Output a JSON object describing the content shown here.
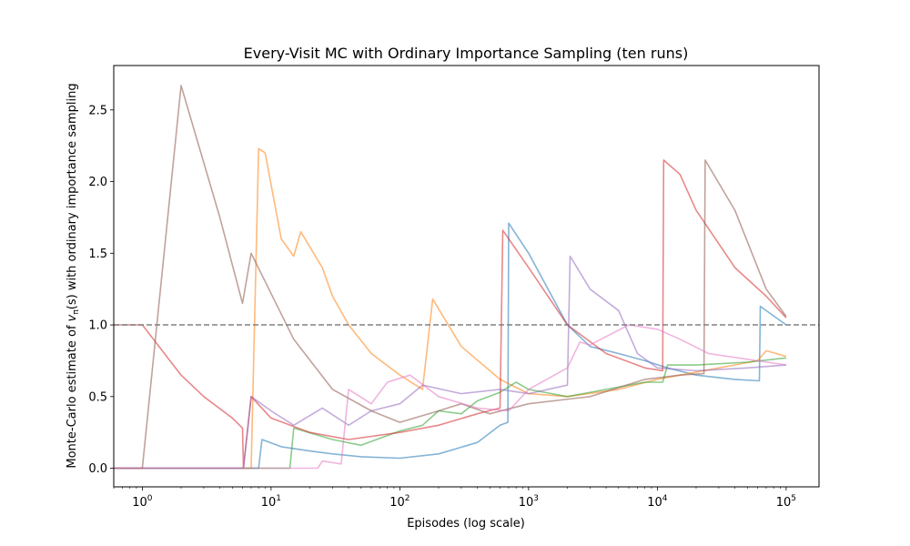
{
  "chart_data": {
    "type": "line",
    "title": "Every-Visit MC with Ordinary Importance Sampling (ten runs)",
    "xlabel": "Episodes (log scale)",
    "ylabel": "Monte-Carlo estimate of v_π(s) with ordinary importance sampling",
    "ylabel_prefix": "Monte-Carlo estimate of ",
    "ylabel_var": "v",
    "ylabel_sub": "π",
    "ylabel_suffix": "(s) with ordinary importance sampling",
    "x_scale": "log",
    "xlim": [
      0.6,
      180000
    ],
    "ylim": [
      -0.13,
      2.81
    ],
    "x_ticks": [
      {
        "value": 1,
        "base": "10",
        "exp": "0"
      },
      {
        "value": 10,
        "base": "10",
        "exp": "1"
      },
      {
        "value": 100,
        "base": "10",
        "exp": "2"
      },
      {
        "value": 1000,
        "base": "10",
        "exp": "3"
      },
      {
        "value": 10000,
        "base": "10",
        "exp": "4"
      },
      {
        "value": 100000,
        "base": "10",
        "exp": "5"
      }
    ],
    "y_ticks": [
      {
        "value": 0.0,
        "label": "0.0"
      },
      {
        "value": 0.5,
        "label": "0.5"
      },
      {
        "value": 1.0,
        "label": "1.0"
      },
      {
        "value": 1.5,
        "label": "1.5"
      },
      {
        "value": 2.0,
        "label": "2.0"
      },
      {
        "value": 2.5,
        "label": "2.5"
      }
    ],
    "reference_line": {
      "y": 1.0,
      "style": "dashed",
      "color": "#808080"
    },
    "grid": false,
    "series": [
      {
        "color": "#1f77b4",
        "points": [
          [
            0.6,
            0
          ],
          [
            8,
            0
          ],
          [
            8.5,
            0.2
          ],
          [
            12,
            0.15
          ],
          [
            20,
            0.12
          ],
          [
            30,
            0.1
          ],
          [
            50,
            0.08
          ],
          [
            100,
            0.07
          ],
          [
            200,
            0.1
          ],
          [
            400,
            0.18
          ],
          [
            600,
            0.3
          ],
          [
            690,
            0.32
          ],
          [
            700,
            1.71
          ],
          [
            1000,
            1.5
          ],
          [
            2000,
            1.0
          ],
          [
            3000,
            0.85
          ],
          [
            5000,
            0.8
          ],
          [
            8000,
            0.75
          ],
          [
            12000,
            0.7
          ],
          [
            20000,
            0.65
          ],
          [
            40000,
            0.62
          ],
          [
            62000,
            0.61
          ],
          [
            63000,
            1.13
          ],
          [
            100000,
            1.0
          ]
        ]
      },
      {
        "color": "#ff7f0e",
        "points": [
          [
            0.6,
            0
          ],
          [
            7,
            0
          ],
          [
            8,
            2.23
          ],
          [
            9,
            2.2
          ],
          [
            12,
            1.6
          ],
          [
            15,
            1.48
          ],
          [
            17,
            1.65
          ],
          [
            25,
            1.4
          ],
          [
            30,
            1.2
          ],
          [
            40,
            1.0
          ],
          [
            60,
            0.8
          ],
          [
            100,
            0.65
          ],
          [
            150,
            0.55
          ],
          [
            180,
            1.18
          ],
          [
            300,
            0.85
          ],
          [
            600,
            0.62
          ],
          [
            1000,
            0.52
          ],
          [
            2000,
            0.5
          ],
          [
            5000,
            0.55
          ],
          [
            10000,
            0.62
          ],
          [
            30000,
            0.7
          ],
          [
            60000,
            0.75
          ],
          [
            70000,
            0.82
          ],
          [
            100000,
            0.78
          ]
        ]
      },
      {
        "color": "#2ca02c",
        "points": [
          [
            0.6,
            0
          ],
          [
            14,
            0
          ],
          [
            15,
            0.28
          ],
          [
            30,
            0.2
          ],
          [
            50,
            0.16
          ],
          [
            100,
            0.26
          ],
          [
            150,
            0.3
          ],
          [
            200,
            0.4
          ],
          [
            300,
            0.38
          ],
          [
            400,
            0.47
          ],
          [
            600,
            0.53
          ],
          [
            800,
            0.6
          ],
          [
            1000,
            0.55
          ],
          [
            2000,
            0.5
          ],
          [
            4000,
            0.55
          ],
          [
            8000,
            0.6
          ],
          [
            11000,
            0.6
          ],
          [
            12000,
            0.72
          ],
          [
            20000,
            0.72
          ],
          [
            50000,
            0.74
          ],
          [
            100000,
            0.77
          ]
        ]
      },
      {
        "color": "#d62728",
        "points": [
          [
            0.6,
            1.0
          ],
          [
            1,
            1.0
          ],
          [
            2,
            0.65
          ],
          [
            3,
            0.5
          ],
          [
            5,
            0.35
          ],
          [
            6,
            0.28
          ],
          [
            6.1,
            0.0
          ],
          [
            7,
            0.5
          ],
          [
            10,
            0.35
          ],
          [
            20,
            0.25
          ],
          [
            40,
            0.2
          ],
          [
            100,
            0.25
          ],
          [
            200,
            0.3
          ],
          [
            400,
            0.38
          ],
          [
            600,
            0.42
          ],
          [
            630,
            1.66
          ],
          [
            1000,
            1.4
          ],
          [
            2000,
            1.0
          ],
          [
            4000,
            0.8
          ],
          [
            8000,
            0.7
          ],
          [
            11000,
            0.68
          ],
          [
            11200,
            2.15
          ],
          [
            15000,
            2.05
          ],
          [
            20000,
            1.8
          ],
          [
            40000,
            1.4
          ],
          [
            70000,
            1.2
          ],
          [
            100000,
            1.05
          ]
        ]
      },
      {
        "color": "#9467bd",
        "points": [
          [
            0.6,
            0
          ],
          [
            6.1,
            0
          ],
          [
            7,
            0.5
          ],
          [
            10,
            0.4
          ],
          [
            15,
            0.3
          ],
          [
            25,
            0.42
          ],
          [
            40,
            0.3
          ],
          [
            60,
            0.4
          ],
          [
            100,
            0.45
          ],
          [
            150,
            0.58
          ],
          [
            300,
            0.52
          ],
          [
            600,
            0.55
          ],
          [
            1000,
            0.52
          ],
          [
            2000,
            0.58
          ],
          [
            2100,
            1.48
          ],
          [
            3000,
            1.25
          ],
          [
            5000,
            1.1
          ],
          [
            7000,
            0.8
          ],
          [
            10000,
            0.7
          ],
          [
            20000,
            0.68
          ],
          [
            50000,
            0.7
          ],
          [
            100000,
            0.72
          ]
        ]
      },
      {
        "color": "#8c564b",
        "points": [
          [
            0.6,
            0
          ],
          [
            1,
            0
          ],
          [
            2,
            2.67
          ],
          [
            4,
            1.75
          ],
          [
            6,
            1.15
          ],
          [
            7,
            1.5
          ],
          [
            15,
            0.9
          ],
          [
            30,
            0.55
          ],
          [
            60,
            0.4
          ],
          [
            100,
            0.32
          ],
          [
            200,
            0.4
          ],
          [
            300,
            0.45
          ],
          [
            500,
            0.38
          ],
          [
            1000,
            0.45
          ],
          [
            3000,
            0.5
          ],
          [
            8000,
            0.62
          ],
          [
            15000,
            0.65
          ],
          [
            23000,
            0.66
          ],
          [
            23500,
            2.15
          ],
          [
            40000,
            1.8
          ],
          [
            70000,
            1.25
          ],
          [
            100000,
            1.06
          ]
        ]
      },
      {
        "color": "#e377c2",
        "points": [
          [
            0.6,
            0
          ],
          [
            23,
            0
          ],
          [
            25,
            0.05
          ],
          [
            35,
            0.03
          ],
          [
            40,
            0.55
          ],
          [
            60,
            0.45
          ],
          [
            80,
            0.6
          ],
          [
            120,
            0.65
          ],
          [
            200,
            0.5
          ],
          [
            400,
            0.42
          ],
          [
            700,
            0.4
          ],
          [
            1000,
            0.55
          ],
          [
            2000,
            0.7
          ],
          [
            2500,
            0.88
          ],
          [
            3000,
            0.86
          ],
          [
            6000,
            1.0
          ],
          [
            10000,
            0.97
          ],
          [
            15000,
            0.9
          ],
          [
            25000,
            0.8
          ],
          [
            50000,
            0.76
          ],
          [
            100000,
            0.72
          ]
        ]
      }
    ]
  }
}
